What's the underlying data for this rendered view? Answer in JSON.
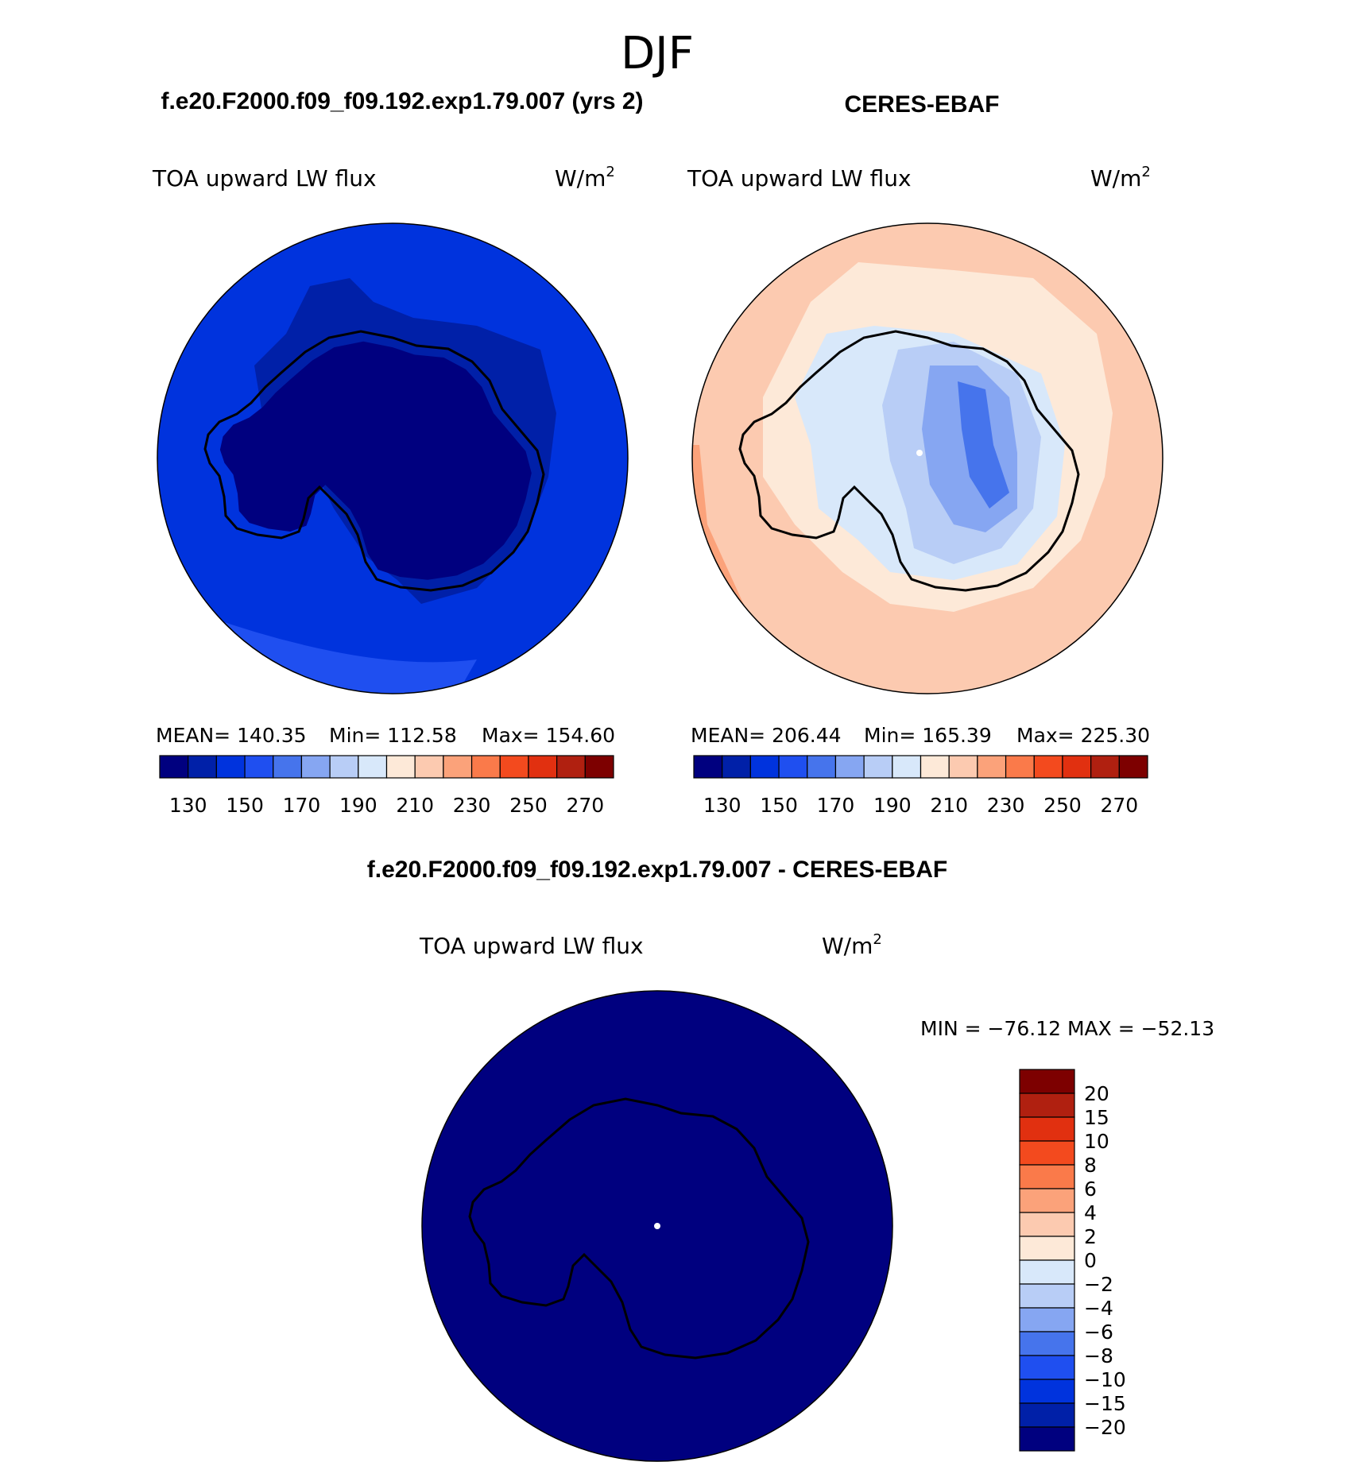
{
  "title": "DJF",
  "colors": {
    "seq_palette": [
      "#00007f",
      "#0020a8",
      "#0033dd",
      "#1f4ff0",
      "#4674ec",
      "#86a6f2",
      "#b8cdf6",
      "#d8e8fa",
      "#fde9d8",
      "#fccab0",
      "#fba27a",
      "#fa7a4a",
      "#f34a1e",
      "#e13010",
      "#b02010",
      "#7d0000"
    ],
    "diff_palette": [
      "#00007f",
      "#0020a8",
      "#0033dd",
      "#1f4ff0",
      "#4674ec",
      "#86a6f2",
      "#b8cdf6",
      "#d8e8fa",
      "#fde9d8",
      "#fccab0",
      "#fba27a",
      "#fa7a4a",
      "#f34a1e",
      "#e13010",
      "#b02010",
      "#7d0000"
    ],
    "outline": "#000000"
  },
  "panels": [
    {
      "heading": "f.e20.F2000.f09_f09.192.exp1.79.007 (yrs 2)",
      "variable": "TOA upward LW flux",
      "units": "W/m",
      "units_sup": "2",
      "stats": {
        "mean_label": "MEAN=",
        "mean": "140.35",
        "min_label": "Min=",
        "min": "112.58",
        "max_label": "Max=",
        "max": "154.60"
      },
      "colorbar_labels": [
        "130",
        "150",
        "170",
        "190",
        "210",
        "230",
        "250",
        "270"
      ],
      "fill_colors": {
        "ocean": "#0033dd",
        "shelf": "#0020a8",
        "ice": "#00007f",
        "margin": "#1f4ff0"
      }
    },
    {
      "heading": "CERES-EBAF",
      "variable": "TOA upward LW flux",
      "units": "W/m",
      "units_sup": "2",
      "stats": {
        "mean_label": "MEAN=",
        "mean": "206.44",
        "min_label": "Min=",
        "min": "165.39",
        "max_label": "Max=",
        "max": "225.30"
      },
      "colorbar_labels": [
        "130",
        "150",
        "170",
        "190",
        "210",
        "230",
        "250",
        "270"
      ],
      "fill_colors": {
        "ocean": "#fccab0",
        "ring": "#fde9d8",
        "coast": "#d8e8fa",
        "interior": "#b8cdf6",
        "inner": "#86a6f2",
        "core": "#4674ec",
        "edge": "#fba27a"
      }
    },
    {
      "heading": "f.e20.F2000.f09_f09.192.exp1.79.007 - CERES-EBAF",
      "variable": "TOA upward LW flux",
      "units": "W/m",
      "units_sup": "2",
      "minmax_text": "MIN = −76.12 MAX = −52.13",
      "colorbar_labels": [
        "20",
        "15",
        "10",
        "8",
        "6",
        "4",
        "2",
        "0",
        "−2",
        "−4",
        "−6",
        "−8",
        "−10",
        "−15",
        "−20"
      ],
      "fill_colors": {
        "ocean": "#00007f"
      }
    }
  ]
}
